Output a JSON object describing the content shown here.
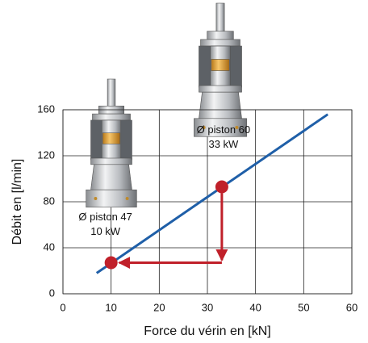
{
  "chart_data": {
    "type": "line",
    "xlabel": "Force du vérin en [kN]",
    "ylabel": "Débit en [l/min]",
    "xlim": [
      0,
      60
    ],
    "ylim": [
      0,
      160
    ],
    "xticks": [
      0,
      10,
      20,
      30,
      40,
      50,
      60
    ],
    "yticks": [
      0,
      40,
      80,
      120,
      160
    ],
    "grid": true,
    "series": [
      {
        "color": "#1f5fa8",
        "x": [
          7,
          55
        ],
        "values": [
          18,
          156
        ]
      },
      {
        "color": "#c0202a",
        "x": [
          10,
          33
        ],
        "values": [
          27,
          93
        ]
      }
    ],
    "annotations": [
      [
        "Ø piston 47",
        "10 kW"
      ],
      [
        "Ø piston 60",
        "33 kW"
      ]
    ]
  }
}
